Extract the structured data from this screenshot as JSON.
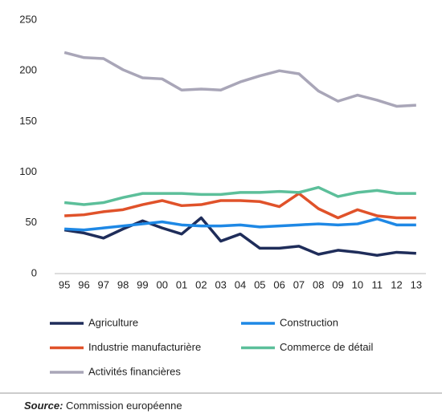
{
  "chart_data": {
    "type": "line",
    "categories": [
      "95",
      "96",
      "97",
      "98",
      "99",
      "00",
      "01",
      "02",
      "03",
      "04",
      "05",
      "06",
      "07",
      "08",
      "09",
      "10",
      "11",
      "12",
      "13"
    ],
    "series": [
      {
        "name": "Agriculture",
        "color": "#1f2d5a",
        "values": [
          43,
          40,
          35,
          44,
          52,
          45,
          39,
          55,
          32,
          39,
          25,
          25,
          27,
          19,
          23,
          21,
          18,
          21,
          20
        ]
      },
      {
        "name": "Construction",
        "color": "#1e88e5",
        "values": [
          44,
          43,
          45,
          47,
          49,
          51,
          48,
          47,
          47,
          48,
          46,
          47,
          48,
          49,
          48,
          49,
          54,
          48,
          48
        ]
      },
      {
        "name": "Industrie manufacturière",
        "color": "#e0522a",
        "values": [
          57,
          58,
          61,
          63,
          68,
          72,
          67,
          68,
          72,
          72,
          71,
          66,
          79,
          64,
          55,
          63,
          57,
          55,
          55
        ]
      },
      {
        "name": "Commerce de détail",
        "color": "#5cbf9a",
        "values": [
          70,
          68,
          70,
          75,
          79,
          79,
          79,
          78,
          78,
          80,
          80,
          81,
          80,
          85,
          76,
          80,
          82,
          79,
          79
        ]
      },
      {
        "name": "Activités financières",
        "color": "#a9a6b8",
        "values": [
          218,
          213,
          212,
          201,
          193,
          192,
          181,
          182,
          181,
          189,
          195,
          200,
          197,
          180,
          170,
          176,
          171,
          165,
          166
        ]
      }
    ],
    "ylim": [
      0,
      250
    ],
    "yticks": [
      0,
      50,
      100,
      150,
      200,
      250
    ],
    "grid": false,
    "source_label": "Source:",
    "source": "Commission européenne"
  }
}
